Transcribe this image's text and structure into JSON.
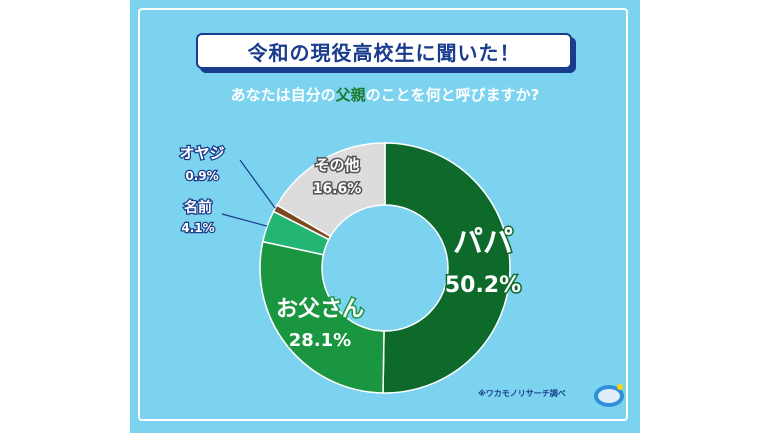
{
  "header": {
    "title": "令和の現役高校生に聞いた！",
    "question_before": "あなたは自分の",
    "question_highlight": "父親",
    "question_after": "のことを何と呼びますか?"
  },
  "source": "※ワカモノリサーチ調べ",
  "colors": {
    "background": "#7bd3ef",
    "title_border": "#1a3c8c",
    "highlight": "#1b7a2e"
  },
  "chart_data": {
    "type": "pie",
    "donut": true,
    "categories": [
      "パパ",
      "お父さん",
      "名前",
      "オヤジ",
      "その他"
    ],
    "values": [
      50.2,
      28.1,
      4.1,
      0.9,
      16.6
    ],
    "value_labels": [
      "50.2%",
      "28.1%",
      "4.1%",
      "0.9%",
      "16.6%"
    ],
    "colors": [
      "#0e6a2b",
      "#1a9640",
      "#22b573",
      "#7a4a1e",
      "#dcdcdc"
    ]
  }
}
